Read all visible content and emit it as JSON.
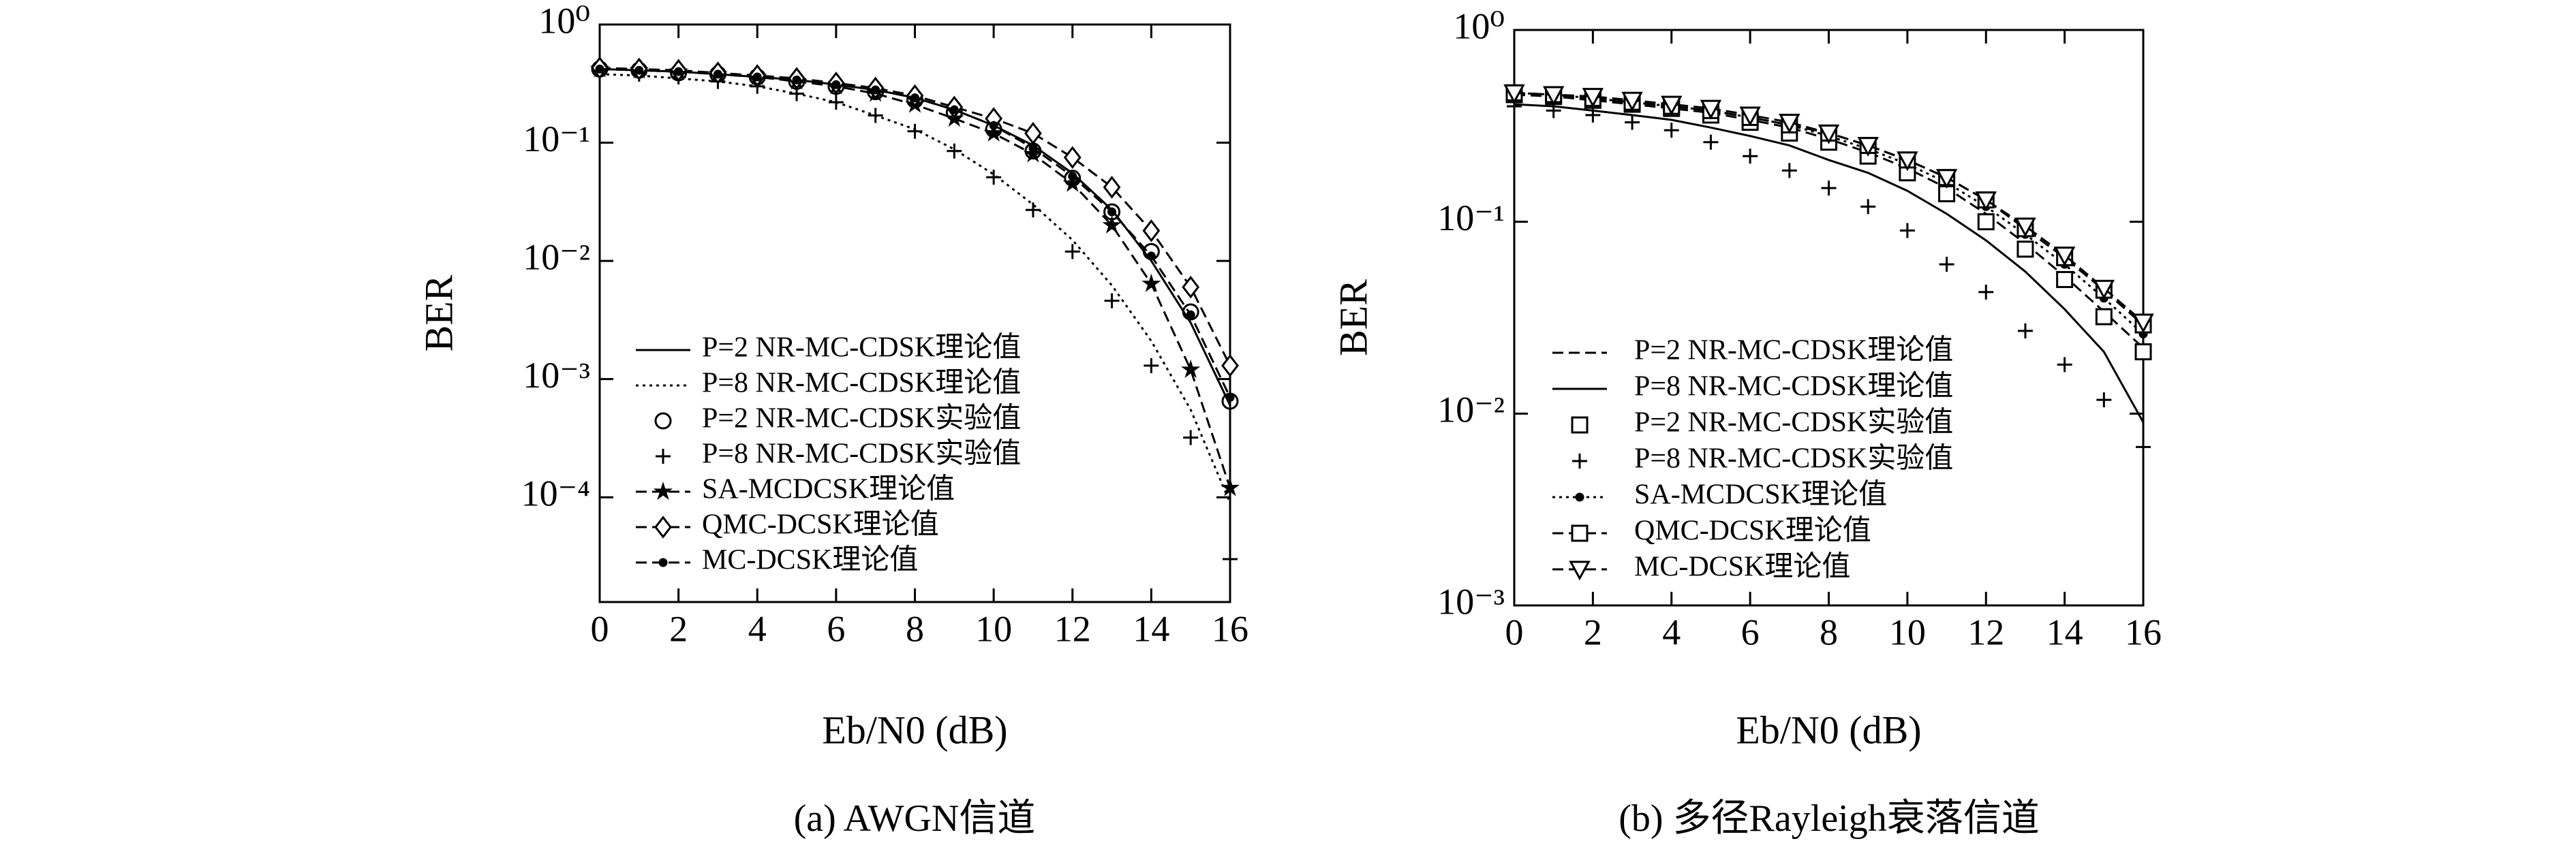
{
  "chart_data": [
    {
      "type": "line",
      "log_y": true,
      "caption": "(a) AWGN信道",
      "x_label": "Eb/N0 (dB)",
      "y_label": "BER",
      "x": [
        0,
        1,
        2,
        3,
        4,
        5,
        6,
        7,
        8,
        9,
        10,
        11,
        12,
        13,
        14,
        15,
        16
      ],
      "xlim": [
        0,
        16
      ],
      "xticks": [
        0,
        2,
        4,
        6,
        8,
        10,
        12,
        14,
        16
      ],
      "ylim": [
        1.3e-05,
        1
      ],
      "yticks": [
        {
          "value": 1,
          "label": "10⁰"
        },
        {
          "value": 0.1,
          "label": "10⁻¹"
        },
        {
          "value": 0.01,
          "label": "10⁻²"
        },
        {
          "value": 0.001,
          "label": "10⁻³"
        },
        {
          "value": 0.0001,
          "label": "10⁻⁴"
        }
      ],
      "series": [
        {
          "name": "P=2 NR-MC-CDSK理论值",
          "color": "#000000",
          "line": "solid",
          "marker": "none",
          "values": [
            0.42,
            0.41,
            0.4,
            0.38,
            0.36,
            0.34,
            0.31,
            0.28,
            0.24,
            0.19,
            0.14,
            0.095,
            0.055,
            0.027,
            0.01,
            0.003,
            0.0006
          ]
        },
        {
          "name": "P=8 NR-MC-CDSK理论值",
          "color": "#000000",
          "line": "dotted",
          "marker": "none",
          "values": [
            0.38,
            0.37,
            0.35,
            0.33,
            0.3,
            0.26,
            0.22,
            0.17,
            0.13,
            0.088,
            0.054,
            0.03,
            0.015,
            0.0062,
            0.0021,
            0.00055,
            9e-05
          ]
        },
        {
          "name": "P=2 NR-MC-CDSK实验值",
          "color": "#000000",
          "line": "none",
          "marker": "circle",
          "values": [
            0.42,
            0.41,
            0.39,
            0.38,
            0.36,
            0.33,
            0.3,
            0.27,
            0.23,
            0.18,
            0.13,
            0.085,
            0.05,
            0.026,
            0.012,
            0.0037,
            0.00065
          ]
        },
        {
          "name": "P=8 NR-MC-CDSK实验值",
          "color": "#000000",
          "line": "none",
          "marker": "plus",
          "values": [
            0.4,
            0.38,
            0.36,
            0.33,
            0.3,
            0.26,
            0.22,
            0.17,
            0.125,
            0.085,
            0.051,
            0.027,
            0.012,
            0.0046,
            0.0013,
            0.00032,
            3e-05
          ]
        },
        {
          "name": "SA-MCDCSK理论值",
          "color": "#000000",
          "line": "dashed",
          "marker": "star",
          "values": [
            0.42,
            0.41,
            0.4,
            0.38,
            0.36,
            0.33,
            0.3,
            0.26,
            0.21,
            0.16,
            0.12,
            0.08,
            0.045,
            0.02,
            0.0064,
            0.0012,
            0.00012
          ]
        },
        {
          "name": "QMC-DCSK理论值",
          "color": "#000000",
          "line": "dashed",
          "marker": "diamond",
          "values": [
            0.43,
            0.42,
            0.41,
            0.39,
            0.37,
            0.35,
            0.32,
            0.29,
            0.25,
            0.2,
            0.16,
            0.12,
            0.075,
            0.042,
            0.018,
            0.006,
            0.0013
          ]
        },
        {
          "name": "MC-DCSK理论值",
          "color": "#000000",
          "line": "dashed",
          "marker": "dot",
          "values": [
            0.42,
            0.41,
            0.4,
            0.38,
            0.36,
            0.34,
            0.31,
            0.28,
            0.24,
            0.19,
            0.14,
            0.09,
            0.052,
            0.026,
            0.011,
            0.0035,
            0.0007
          ]
        }
      ]
    },
    {
      "type": "line",
      "log_y": true,
      "caption": "(b) 多径Rayleigh衰落信道",
      "x_label": "Eb/N0 (dB)",
      "y_label": "BER",
      "x": [
        0,
        1,
        2,
        3,
        4,
        5,
        6,
        7,
        8,
        9,
        10,
        11,
        12,
        13,
        14,
        15,
        16
      ],
      "xlim": [
        0,
        16
      ],
      "xticks": [
        0,
        2,
        4,
        6,
        8,
        10,
        12,
        14,
        16
      ],
      "ylim": [
        0.001,
        1
      ],
      "yticks": [
        {
          "value": 1,
          "label": "10⁰"
        },
        {
          "value": 0.1,
          "label": "10⁻¹"
        },
        {
          "value": 0.01,
          "label": "10⁻²"
        },
        {
          "value": 0.001,
          "label": "10⁻³"
        }
      ],
      "series": [
        {
          "name": "P=2 NR-MC-CDSK理论值",
          "color": "#000000",
          "line": "dashed",
          "marker": "none",
          "values": [
            0.46,
            0.45,
            0.43,
            0.41,
            0.39,
            0.37,
            0.34,
            0.31,
            0.27,
            0.23,
            0.19,
            0.15,
            0.11,
            0.077,
            0.052,
            0.034,
            0.022
          ]
        },
        {
          "name": "P=8 NR-MC-CDSK理论值",
          "color": "#000000",
          "line": "solid",
          "marker": "none",
          "values": [
            0.41,
            0.4,
            0.38,
            0.36,
            0.34,
            0.31,
            0.28,
            0.25,
            0.21,
            0.18,
            0.145,
            0.11,
            0.08,
            0.055,
            0.035,
            0.021,
            0.009
          ]
        },
        {
          "name": "P=2 NR-MC-CDSK实验值",
          "color": "#000000",
          "line": "none",
          "marker": "square",
          "values": [
            0.46,
            0.45,
            0.43,
            0.41,
            0.39,
            0.36,
            0.33,
            0.29,
            0.26,
            0.22,
            0.18,
            0.14,
            0.1,
            0.072,
            0.05,
            0.032,
            0.021
          ]
        },
        {
          "name": "P=8 NR-MC-CDSK实验值",
          "color": "#000000",
          "line": "none",
          "marker": "plus",
          "values": [
            0.4,
            0.38,
            0.36,
            0.33,
            0.3,
            0.26,
            0.22,
            0.185,
            0.15,
            0.12,
            0.09,
            0.06,
            0.043,
            0.027,
            0.018,
            0.0118,
            0.0067
          ]
        },
        {
          "name": "SA-MCDCSK理论值",
          "color": "#000000",
          "line": "dotted",
          "marker": "dot",
          "values": [
            0.47,
            0.46,
            0.44,
            0.42,
            0.4,
            0.38,
            0.35,
            0.32,
            0.28,
            0.24,
            0.2,
            0.16,
            0.12,
            0.086,
            0.06,
            0.04,
            0.026
          ]
        },
        {
          "name": "QMC-DCSK理论值",
          "color": "#000000",
          "line": "dashed",
          "marker": "square",
          "values": [
            0.47,
            0.46,
            0.44,
            0.42,
            0.4,
            0.38,
            0.35,
            0.32,
            0.29,
            0.25,
            0.21,
            0.17,
            0.13,
            0.092,
            0.065,
            0.044,
            0.029
          ]
        },
        {
          "name": "MC-DCSK理论值",
          "color": "#000000",
          "line": "dashed",
          "marker": "triangle",
          "values": [
            0.47,
            0.46,
            0.45,
            0.43,
            0.41,
            0.39,
            0.36,
            0.33,
            0.29,
            0.25,
            0.21,
            0.17,
            0.13,
            0.095,
            0.067,
            0.045,
            0.03
          ]
        }
      ]
    }
  ]
}
